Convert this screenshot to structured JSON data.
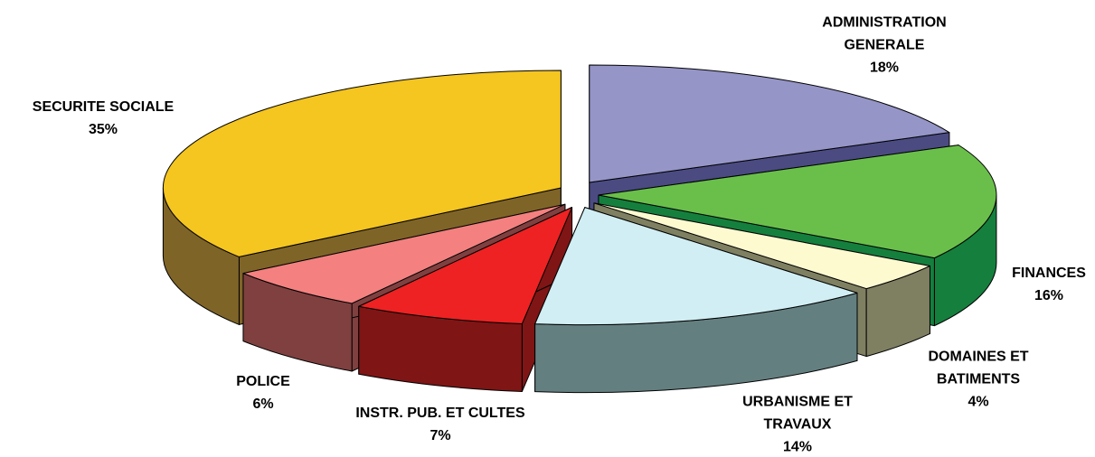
{
  "chart_data": {
    "type": "pie3d",
    "categories": [
      "ADMINISTRATION GENERALE",
      "FINANCES",
      "DOMAINES ET BATIMENTS",
      "URBANISME ET TRAVAUX",
      "INSTR. PUB. ET CULTES",
      "POLICE",
      "SECURITE SOCIALE"
    ],
    "values": [
      18,
      16,
      4,
      14,
      7,
      6,
      35
    ],
    "value_labels": [
      "18%",
      "16%",
      "4%",
      "14%",
      "7%",
      "6%",
      "35%"
    ],
    "colors": [
      "#9595c8",
      "#6abf4b",
      "#fdfad0",
      "#d0eef3",
      "#ee2222",
      "#f48080",
      "#f5c520"
    ],
    "side_colors": [
      "#4b4b82",
      "#157f3e",
      "#7f7f62",
      "#647f80",
      "#7f1515",
      "#804040",
      "#7f6428"
    ]
  }
}
